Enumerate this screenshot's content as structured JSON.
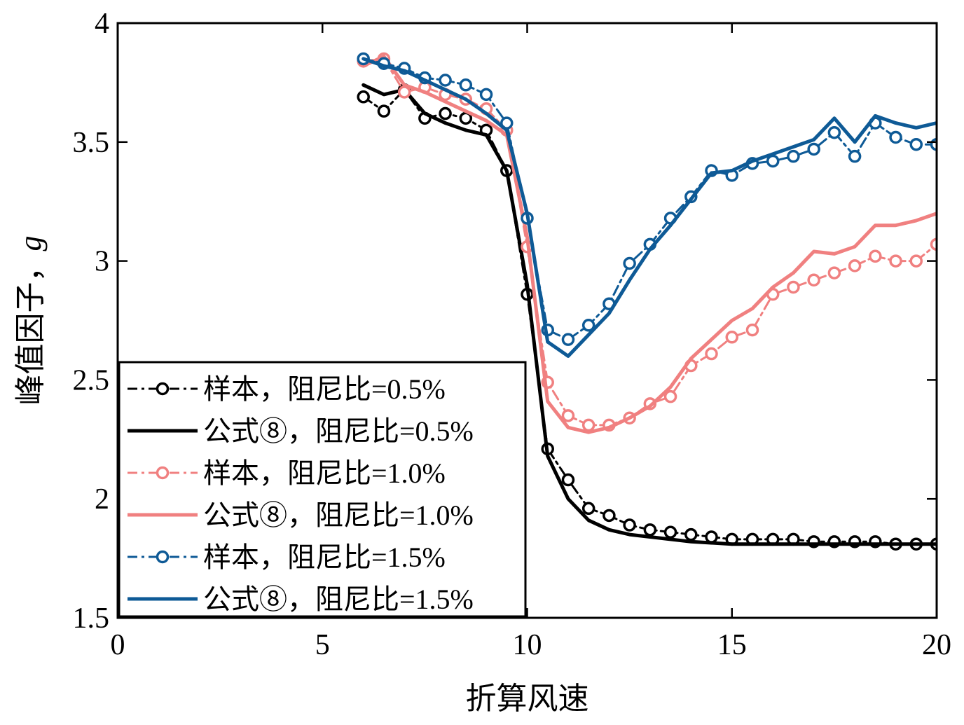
{
  "chart_data": {
    "type": "line",
    "title": "",
    "xlabel": "折算风速",
    "ylabel_main": "峰值因子，",
    "ylabel_symbol": "g",
    "xlim": [
      0,
      20
    ],
    "ylim": [
      1.5,
      4
    ],
    "xticks": [
      "0",
      "5",
      "10",
      "15",
      "20"
    ],
    "yticks": [
      "1.5",
      "2",
      "2.5",
      "3",
      "3.5",
      "4"
    ],
    "grid": false,
    "legend_position": "lower-left",
    "colors": {
      "black": "#000000",
      "pink": "#f08080",
      "blue": "#0e5a96"
    },
    "series": [
      {
        "name": "样本，阻尼比=0.5%",
        "style": "dashdot-circle",
        "color": "#000000",
        "x": [
          6,
          6.5,
          7,
          7.5,
          8,
          8.5,
          9,
          9.5,
          10,
          10.5,
          11,
          11.5,
          12,
          12.5,
          13,
          13.5,
          14,
          14.5,
          15,
          15.5,
          16,
          16.5,
          17,
          17.5,
          18,
          18.5,
          19,
          19.5,
          20
        ],
        "y": [
          3.69,
          3.63,
          3.72,
          3.6,
          3.62,
          3.6,
          3.55,
          3.38,
          2.86,
          2.21,
          2.08,
          1.96,
          1.93,
          1.89,
          1.87,
          1.86,
          1.85,
          1.84,
          1.83,
          1.83,
          1.83,
          1.83,
          1.82,
          1.82,
          1.82,
          1.82,
          1.81,
          1.81,
          1.81
        ]
      },
      {
        "name": "公式⑧，阻尼比=0.5%",
        "style": "solid",
        "color": "#000000",
        "x": [
          6,
          6.5,
          7,
          7.5,
          8,
          8.5,
          9,
          9.5,
          10,
          10.5,
          11,
          11.5,
          12,
          12.5,
          13,
          14,
          15,
          16,
          17,
          18,
          19,
          20
        ],
        "y": [
          3.74,
          3.7,
          3.72,
          3.62,
          3.58,
          3.55,
          3.53,
          3.38,
          2.9,
          2.18,
          2.0,
          1.91,
          1.87,
          1.85,
          1.84,
          1.82,
          1.81,
          1.81,
          1.81,
          1.81,
          1.81,
          1.81
        ]
      },
      {
        "name": "样本，阻尼比=1.0%",
        "style": "dashdot-circle",
        "color": "#f08080",
        "x": [
          6,
          6.5,
          7,
          7.5,
          8,
          8.5,
          9,
          9.5,
          10,
          10.5,
          11,
          11.5,
          12,
          12.5,
          13,
          13.5,
          14,
          14.5,
          15,
          15.5,
          16,
          16.5,
          17,
          17.5,
          18,
          18.5,
          19,
          19.5,
          20
        ],
        "y": [
          3.84,
          3.85,
          3.71,
          3.73,
          3.7,
          3.68,
          3.64,
          3.55,
          3.06,
          2.49,
          2.35,
          2.31,
          2.31,
          2.34,
          2.4,
          2.43,
          2.56,
          2.61,
          2.68,
          2.71,
          2.86,
          2.89,
          2.92,
          2.95,
          2.98,
          3.02,
          3.0,
          3.0,
          3.07
        ]
      },
      {
        "name": "公式⑧，阻尼比=1.0%",
        "style": "solid",
        "color": "#f08080",
        "x": [
          6,
          6.5,
          7,
          7.5,
          8,
          8.5,
          9,
          9.5,
          10,
          10.5,
          11,
          11.5,
          12,
          12.5,
          13,
          13.5,
          14,
          14.5,
          15,
          15.5,
          16,
          16.5,
          17,
          17.5,
          18,
          18.5,
          19,
          19.5,
          20
        ],
        "y": [
          3.82,
          3.86,
          3.74,
          3.71,
          3.67,
          3.63,
          3.59,
          3.53,
          3.1,
          2.41,
          2.3,
          2.28,
          2.3,
          2.34,
          2.39,
          2.47,
          2.59,
          2.67,
          2.75,
          2.8,
          2.89,
          2.95,
          3.04,
          3.03,
          3.06,
          3.15,
          3.15,
          3.17,
          3.2
        ]
      },
      {
        "name": "样本，阻尼比=1.5%",
        "style": "dashdot-circle",
        "color": "#0e5a96",
        "x": [
          6,
          6.5,
          7,
          7.5,
          8,
          8.5,
          9,
          9.5,
          10,
          10.5,
          11,
          11.5,
          12,
          12.5,
          13,
          13.5,
          14,
          14.5,
          15,
          15.5,
          16,
          16.5,
          17,
          17.5,
          18,
          18.5,
          19,
          19.5,
          20
        ],
        "y": [
          3.85,
          3.83,
          3.81,
          3.77,
          3.76,
          3.74,
          3.7,
          3.58,
          3.18,
          2.71,
          2.67,
          2.73,
          2.82,
          2.99,
          3.07,
          3.18,
          3.27,
          3.38,
          3.36,
          3.41,
          3.42,
          3.44,
          3.47,
          3.54,
          3.44,
          3.58,
          3.52,
          3.49,
          3.49
        ]
      },
      {
        "name": "公式⑧，阻尼比=1.5%",
        "style": "solid",
        "color": "#0e5a96",
        "x": [
          6,
          6.5,
          7,
          7.5,
          8,
          8.5,
          9,
          9.5,
          10,
          10.5,
          11,
          11.5,
          12,
          12.5,
          13,
          13.5,
          14,
          14.5,
          15,
          15.5,
          16,
          16.5,
          17,
          17.5,
          18,
          18.5,
          19,
          19.5,
          20
        ],
        "y": [
          3.85,
          3.82,
          3.8,
          3.76,
          3.72,
          3.68,
          3.62,
          3.55,
          3.2,
          2.66,
          2.6,
          2.69,
          2.78,
          2.92,
          3.05,
          3.15,
          3.26,
          3.37,
          3.38,
          3.42,
          3.45,
          3.48,
          3.51,
          3.6,
          3.5,
          3.61,
          3.58,
          3.56,
          3.58
        ]
      }
    ]
  }
}
